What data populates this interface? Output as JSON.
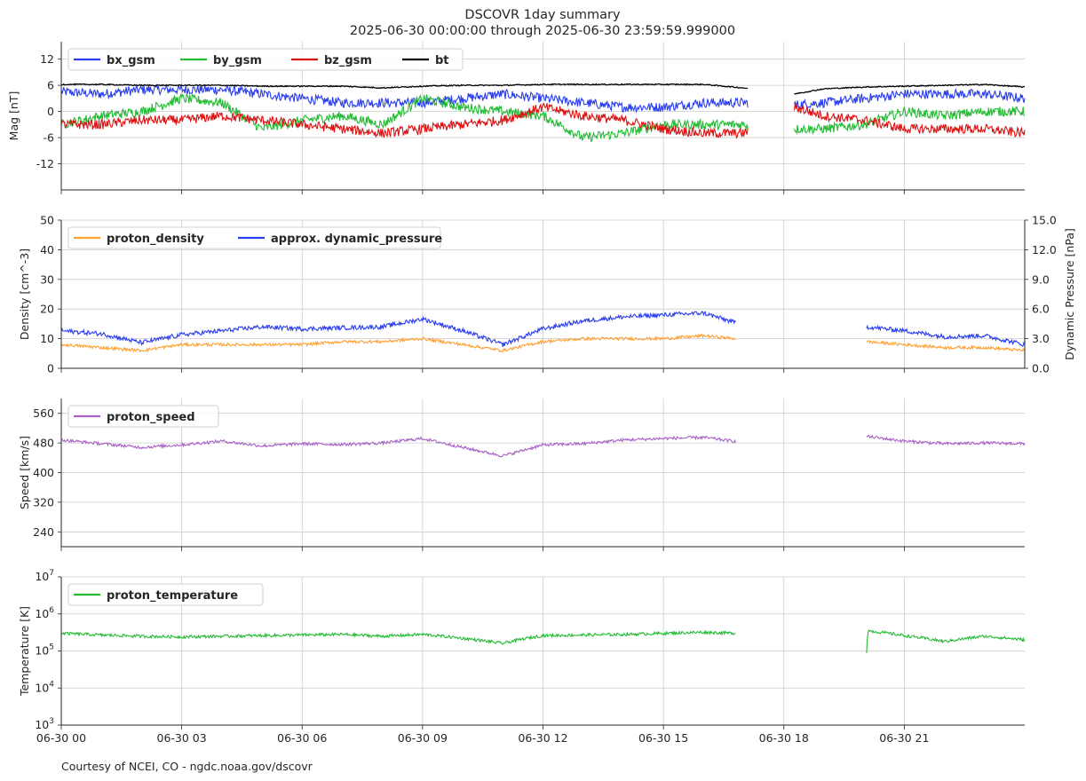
{
  "title_line1": "DSCOVR 1day summary",
  "title_line2": "2025-06-30 00:00:00 through 2025-06-30 23:59:59.999000",
  "credit": "Courtesy of NCEI, CO - ngdc.noaa.gov/dscovr",
  "chart_data": [
    {
      "type": "line",
      "ylabel": "Mag   [nT]",
      "ylim": [
        -18,
        16
      ],
      "yticks": [
        "-12",
        "-6",
        "0",
        "6",
        "12"
      ],
      "xlim": [
        0,
        24
      ],
      "grid": true,
      "legend_position": "top-left",
      "gaps": [
        [
          17.1,
          18.25
        ]
      ],
      "series": [
        {
          "name": "bx_gsm",
          "color": "#2a3df0",
          "x": [
            0,
            1,
            2,
            3,
            4,
            5,
            6,
            7,
            8,
            9,
            10,
            11,
            12,
            13,
            14,
            15,
            16,
            17,
            18.25,
            19,
            20,
            21,
            22,
            23,
            24
          ],
          "values": [
            4.5,
            4,
            5,
            5,
            5,
            4,
            3,
            2,
            2,
            2,
            3,
            4,
            3,
            2,
            1,
            1,
            2,
            2,
            1.5,
            2,
            3,
            4,
            4,
            4,
            3
          ]
        },
        {
          "name": "by_gsm",
          "color": "#22bb33",
          "x": [
            0,
            1,
            2,
            3,
            4,
            5,
            6,
            7,
            8,
            9,
            10,
            11,
            12,
            13,
            14,
            15,
            16,
            17,
            18.25,
            19,
            20,
            21,
            22,
            23,
            24
          ],
          "values": [
            -3,
            -1,
            0,
            3,
            2,
            -4,
            -2,
            -1,
            -3,
            3,
            1,
            0,
            -1,
            -6,
            -5,
            -3,
            -3,
            -3,
            -4,
            -4,
            -3,
            0,
            -1,
            0,
            0
          ]
        },
        {
          "name": "bz_gsm",
          "color": "#dd1111",
          "x": [
            0,
            1,
            2,
            3,
            4,
            5,
            6,
            7,
            8,
            9,
            10,
            11,
            12,
            13,
            14,
            15,
            16,
            17,
            18.25,
            19,
            20,
            21,
            22,
            23,
            24
          ],
          "values": [
            -3,
            -3,
            -2,
            -2,
            -1,
            -2,
            -3,
            -4,
            -5,
            -4,
            -3,
            -2,
            1,
            -1,
            -2,
            -4,
            -5,
            -5,
            1,
            -1,
            -2,
            -4,
            -4,
            -4,
            -5
          ]
        },
        {
          "name": "bt",
          "color": "#000000",
          "x": [
            0,
            1,
            2,
            3,
            4,
            5,
            6,
            7,
            8,
            9,
            10,
            11,
            12,
            13,
            14,
            15,
            16,
            17,
            18.25,
            19,
            20,
            21,
            22,
            23,
            24
          ],
          "values": [
            6.2,
            6.2,
            6,
            6,
            6,
            5.8,
            5.8,
            5.8,
            5.4,
            5.8,
            6,
            6,
            6.2,
            6.2,
            6.2,
            6.2,
            6.2,
            5.4,
            4,
            5.2,
            5.6,
            5.8,
            6,
            6.2,
            5.6
          ]
        }
      ]
    },
    {
      "type": "line",
      "ylabel": "Density   [cm^-3]",
      "ylabel_right": "Dynamic Pressure   [nPa]",
      "ylim": [
        0,
        50
      ],
      "yticks": [
        "0",
        "10",
        "20",
        "30",
        "40",
        "50"
      ],
      "ylim_right": [
        0,
        15
      ],
      "yticks_right": [
        "0.0",
        "3.0",
        "6.0",
        "9.0",
        "12.0",
        "15.0"
      ],
      "xlim": [
        0,
        24
      ],
      "grid": true,
      "legend_position": "top-left",
      "gaps": [
        [
          16.8,
          20.05
        ]
      ],
      "series": [
        {
          "name": "proton_density",
          "color": "#ffa033",
          "x": [
            0,
            1,
            2,
            3,
            4,
            5,
            6,
            7,
            8,
            9,
            10,
            11,
            12,
            13,
            14,
            15,
            16,
            16.8,
            20.05,
            21,
            22,
            23,
            24
          ],
          "values": [
            8,
            7,
            6,
            8,
            8,
            8,
            8,
            9,
            9,
            10,
            8,
            6,
            9,
            10,
            10,
            10,
            11,
            10,
            9,
            8,
            7,
            7,
            6
          ]
        },
        {
          "name": "approx. dynamic_pressure",
          "color": "#2a3df0",
          "x": [
            0,
            1,
            2,
            3,
            4,
            5,
            6,
            7,
            8,
            9,
            10,
            11,
            12,
            13,
            14,
            15,
            16,
            16.8,
            20.05,
            21,
            22,
            23,
            24
          ],
          "values": [
            3.8,
            3.5,
            2.6,
            3.4,
            3.8,
            4.2,
            4.0,
            4.1,
            4.2,
            5,
            3.8,
            2.4,
            4.0,
            4.8,
            5.2,
            5.4,
            5.6,
            4.6,
            4.2,
            3.8,
            3.2,
            3.3,
            2.4
          ]
        }
      ]
    },
    {
      "type": "line",
      "ylabel": "Speed   [km/s]",
      "ylim": [
        200,
        600
      ],
      "yticks": [
        "240",
        "320",
        "400",
        "480",
        "560"
      ],
      "xlim": [
        0,
        24
      ],
      "grid": true,
      "legend_position": "top-left",
      "gaps": [
        [
          16.8,
          20.05
        ]
      ],
      "series": [
        {
          "name": "proton_speed",
          "color": "#a861c6",
          "x": [
            0,
            1,
            2,
            3,
            4,
            5,
            6,
            7,
            8,
            9,
            10,
            11,
            12,
            13,
            14,
            15,
            16,
            16.8,
            20.05,
            21,
            22,
            23,
            24
          ],
          "values": [
            488,
            478,
            468,
            475,
            485,
            472,
            478,
            476,
            480,
            492,
            468,
            445,
            475,
            478,
            488,
            492,
            495,
            484,
            498,
            485,
            478,
            480,
            478
          ]
        }
      ]
    },
    {
      "type": "line",
      "ylabel": "Temperature   [K]",
      "yscale": "log",
      "ylim": [
        1000,
        10000000
      ],
      "yticks": [
        "10^3",
        "10^4",
        "10^5",
        "10^6",
        "10^7"
      ],
      "xlim": [
        0,
        24
      ],
      "xticks": [
        "06-30 00",
        "06-30 03",
        "06-30 06",
        "06-30 09",
        "06-30 12",
        "06-30 15",
        "06-30 18",
        "06-30 21"
      ],
      "grid": true,
      "legend_position": "top-left",
      "gaps": [
        [
          16.8,
          20.05
        ]
      ],
      "series": [
        {
          "name": "proton_temperature",
          "color": "#22bb33",
          "x": [
            0,
            1,
            2,
            3,
            4,
            5,
            6,
            7,
            8,
            9,
            10,
            11,
            12,
            13,
            14,
            15,
            16,
            16.8,
            20.05,
            20.1,
            21,
            22,
            23,
            24
          ],
          "values": [
            300000,
            270000,
            250000,
            240000,
            250000,
            260000,
            270000,
            280000,
            250000,
            280000,
            220000,
            160000,
            260000,
            270000,
            280000,
            300000,
            320000,
            300000,
            30000,
            350000,
            260000,
            180000,
            250000,
            200000
          ]
        }
      ]
    }
  ]
}
